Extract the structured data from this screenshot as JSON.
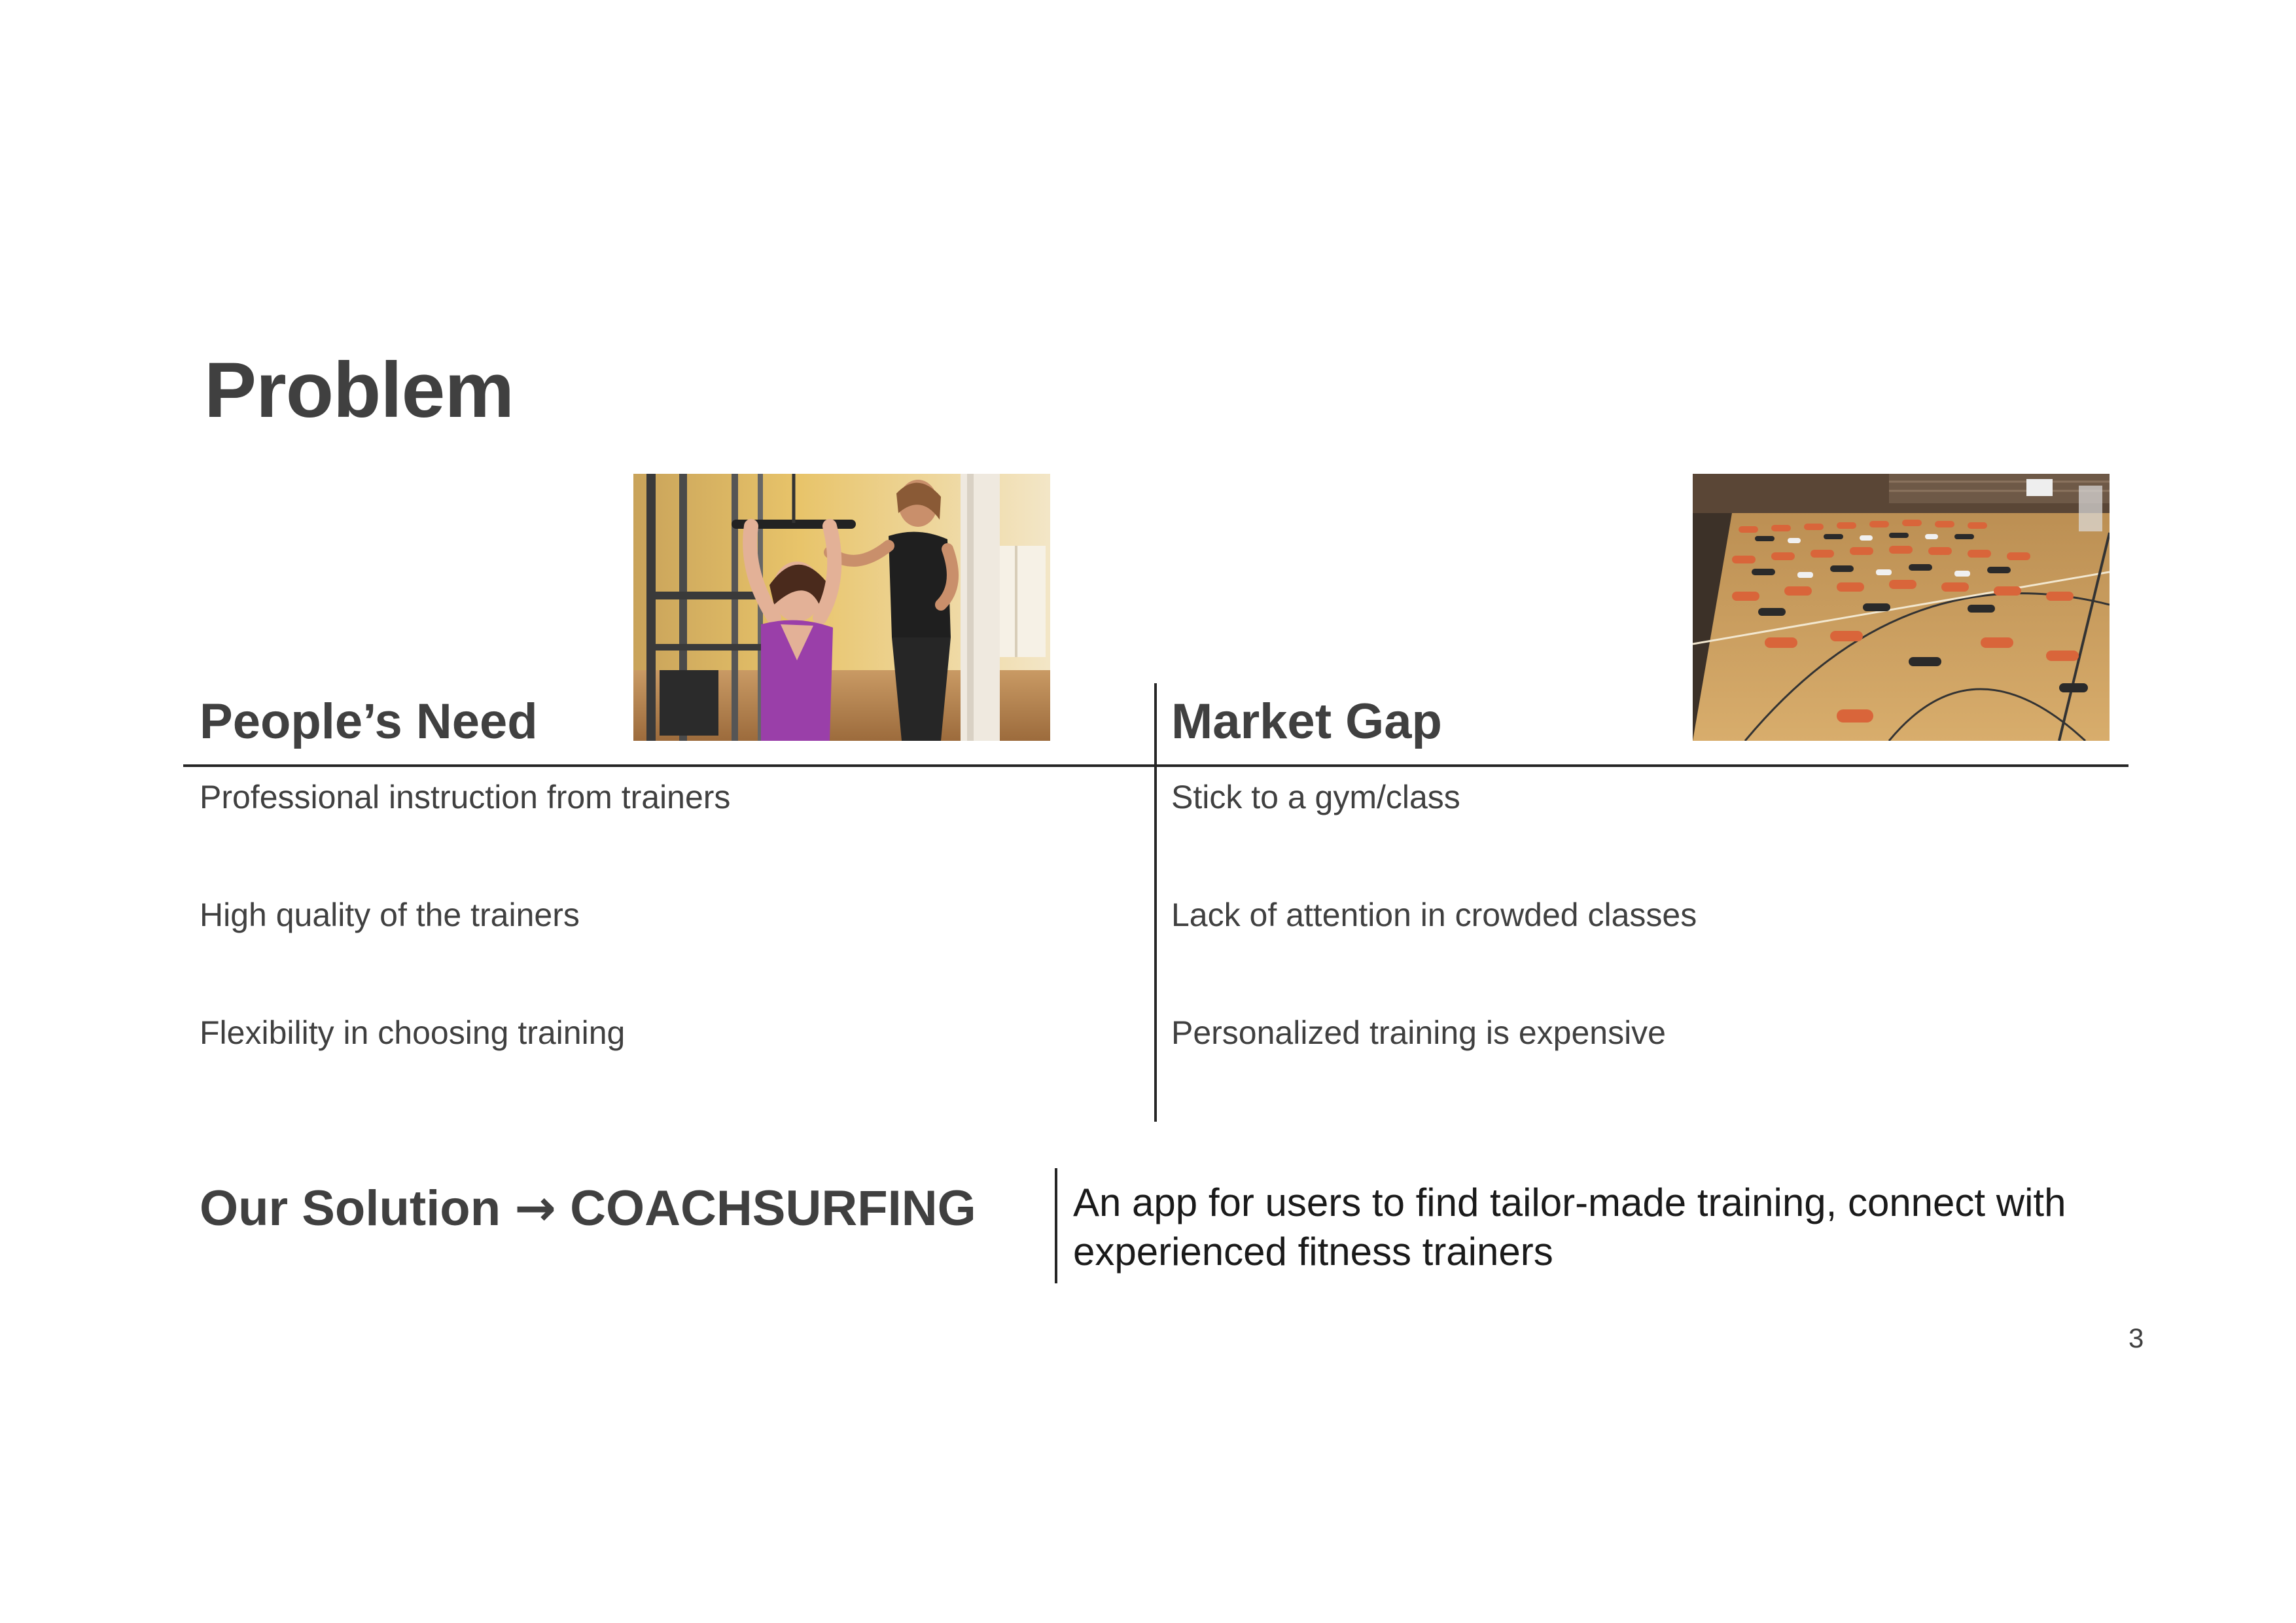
{
  "slide": {
    "title": "Problem",
    "page_number": "3"
  },
  "left_column": {
    "heading": "People’s Need",
    "items": [
      "Professional instruction from trainers",
      "High quality of the trainers",
      "Flexibility in choosing training"
    ]
  },
  "right_column": {
    "heading": "Market Gap",
    "items": [
      "Stick to a gym/class",
      "Lack of attention in crowded classes",
      "Personalized training is expensive"
    ]
  },
  "solution": {
    "lead": "Our Solution",
    "arrow": "→",
    "name": "COACHSURFING",
    "description": "An app for users to find tailor-made training, connect with experienced fitness trainers"
  },
  "photos": {
    "left": "personal-trainer-photo",
    "right": "crowded-gym-class-photo"
  }
}
